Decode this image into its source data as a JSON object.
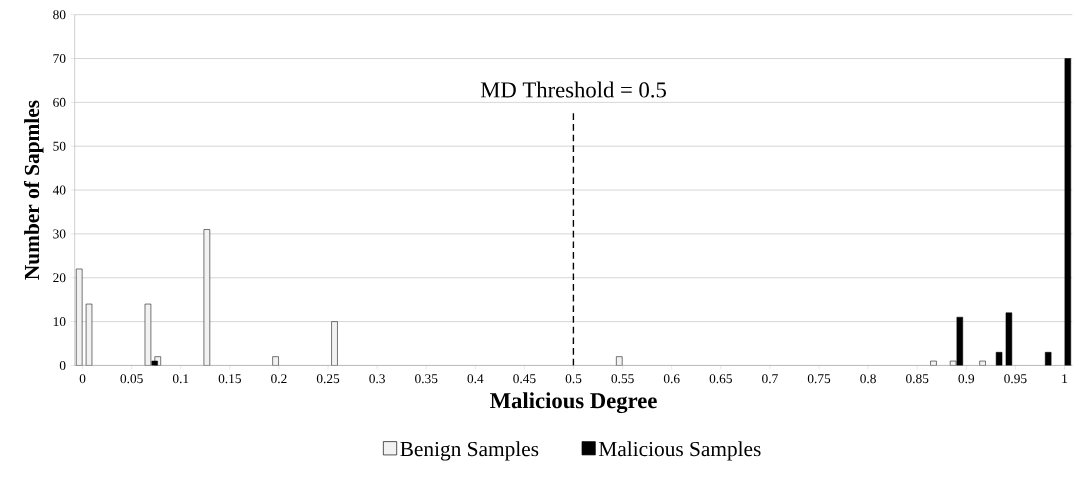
{
  "chart_data": {
    "type": "bar",
    "xlabel": "Malicious Degree",
    "ylabel": "Number of Sapmles",
    "series": [
      {
        "name": "Benign Samples",
        "color": "#f2f2f2",
        "x": [
          0,
          0.01,
          0.07,
          0.08,
          0.13,
          0.2,
          0.26,
          0.55,
          0.87,
          0.89,
          0.92
        ],
        "values": [
          22,
          14,
          14,
          2,
          31,
          2,
          10,
          2,
          1,
          1,
          1
        ]
      },
      {
        "name": "Malicious Samples",
        "color": "#000000",
        "x": [
          0.07,
          0.89,
          0.93,
          0.94,
          0.98,
          1.0
        ],
        "values": [
          1,
          11,
          3,
          12,
          3,
          70
        ]
      }
    ],
    "xlim": [
      -0.008,
      1.008
    ],
    "xticks": [
      0,
      0.05,
      0.1,
      0.15,
      0.2,
      0.25,
      0.3,
      0.35,
      0.4,
      0.45,
      0.5,
      0.55,
      0.6,
      0.65,
      0.7,
      0.75,
      0.8,
      0.85,
      0.9,
      0.95,
      1
    ],
    "ylim": [
      0,
      80
    ],
    "yticks": [
      0,
      10,
      20,
      30,
      40,
      50,
      60,
      70,
      80
    ],
    "ref_lines": [
      {
        "axis": "x",
        "value": 0.5,
        "label": "MD Threshold = 0.5",
        "line_style": "dashed",
        "color": "#000000"
      }
    ],
    "grid": "y",
    "legend": "bottom"
  }
}
